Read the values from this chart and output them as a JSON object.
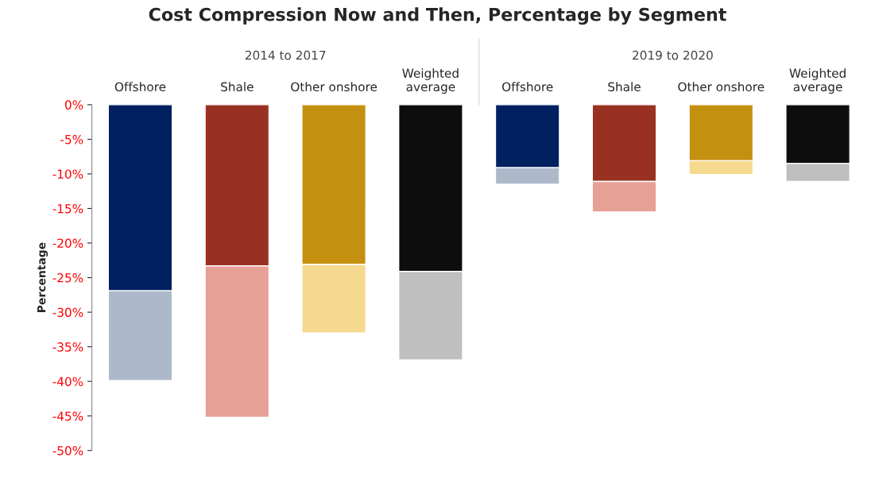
{
  "chart_data": {
    "type": "bar",
    "title": "Cost Compression Now and Then, Percentage by Segment",
    "ylabel": "Percentage",
    "categories": [
      "Offshore",
      "Shale",
      "Other onshore",
      "Weighted\naverage",
      "Offshore",
      "Shale",
      "Other onshore",
      "Weighted\naverage"
    ],
    "annotations": [
      "2014 to 2017",
      "2019 to 2020"
    ],
    "stacked": true,
    "series": [
      {
        "colors": [
          "#002060",
          "#993122",
          "#c49010",
          "#0d0d0d",
          "#002060",
          "#993122",
          "#c49010",
          "#0d0d0d"
        ],
        "values": [
          -26.9,
          -23.3,
          -23.1,
          -24.1,
          -9.1,
          -11.1,
          -8.1,
          -8.5
        ]
      },
      {
        "colors": [
          "#adb9ca",
          "#e6a096",
          "#f5d98f",
          "#bfbfbf",
          "#adb9ca",
          "#e6a096",
          "#f5d98f",
          "#bfbfbf"
        ],
        "values": [
          -13.0,
          -21.9,
          -9.9,
          -12.8,
          -2.4,
          -4.4,
          -2.0,
          -2.6
        ]
      }
    ],
    "ylim": [
      -50,
      0
    ],
    "yticks": [
      {
        "value": 0,
        "label": "0%"
      },
      {
        "value": -5,
        "label": "-5%"
      },
      {
        "value": -10,
        "label": "-10%"
      },
      {
        "value": -15,
        "label": "-15%"
      },
      {
        "value": -20,
        "label": "-20%"
      },
      {
        "value": -25,
        "label": "-25%"
      },
      {
        "value": -30,
        "label": "-30%"
      },
      {
        "value": -35,
        "label": "-35%"
      },
      {
        "value": -40,
        "label": "-40%"
      },
      {
        "value": -45,
        "label": "-45%"
      },
      {
        "value": -50,
        "label": "-50%"
      }
    ],
    "grid": false,
    "legend": false
  }
}
